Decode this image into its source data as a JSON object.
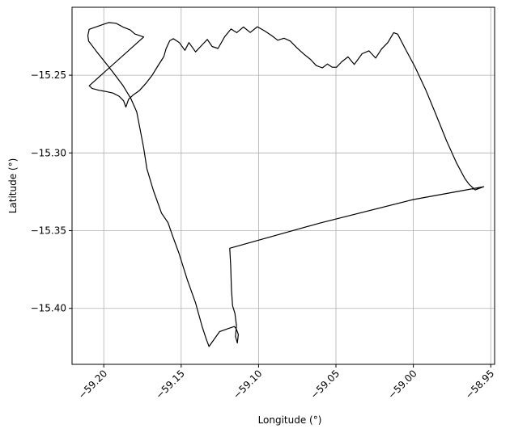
{
  "chart_data": {
    "type": "line",
    "title": "",
    "xlabel": "Longitude (°)",
    "ylabel": "Latitude (°)",
    "xlim": [
      -59.2205,
      -58.9475
    ],
    "ylim": [
      -15.436,
      -15.2063
    ],
    "xticks": [
      -59.2,
      -59.15,
      -59.1,
      -59.05,
      -59.0,
      -58.95
    ],
    "xtick_labels": [
      "−59.20",
      "−59.15",
      "−59.10",
      "−59.05",
      "−59.00",
      "−58.95"
    ],
    "yticks": [
      -15.25,
      -15.3,
      -15.35,
      -15.4
    ],
    "ytick_labels": [
      "−15.25",
      "−15.30",
      "−15.35",
      "−15.40"
    ],
    "grid": true,
    "series": [
      {
        "color": "#000000",
        "x": [
          -59.2094,
          -59.2076,
          -59.203,
          -59.1985,
          -59.1941,
          -59.1901,
          -59.1872,
          -59.1857,
          -59.184,
          -59.1811,
          -59.1771,
          -59.173,
          -59.1687,
          -59.165,
          -59.1612,
          -59.1598,
          -59.1574,
          -59.155,
          -59.1512,
          -59.1476,
          -59.145,
          -59.1407,
          -59.1362,
          -59.1331,
          -59.13,
          -59.1262,
          -59.1218,
          -59.1178,
          -59.1141,
          -59.1098,
          -59.1054,
          -59.1008,
          -59.0962,
          -59.0916,
          -59.0876,
          -59.0836,
          -59.0795,
          -59.0752,
          -59.0709,
          -59.0665,
          -59.0627,
          -59.0588,
          -59.0555,
          -59.0525,
          -59.0497,
          -59.0463,
          -59.0422,
          -59.0382,
          -59.0331,
          -59.0287,
          -59.0244,
          -59.0205,
          -59.0165,
          -59.0127,
          -59.0101,
          -59.0055,
          -58.999,
          -58.992,
          -58.9859,
          -58.9785,
          -58.972,
          -58.9667,
          -58.964,
          -58.96,
          -58.9545,
          -59.0,
          -59.06,
          -59.1186,
          -59.118,
          -59.1175,
          -59.1168,
          -59.1153,
          -59.1143,
          -59.1149,
          -59.1137,
          -59.1131,
          -59.1145,
          -59.1157,
          -59.1192,
          -59.1252,
          -59.132,
          -59.1339,
          -59.1365,
          -59.1408,
          -59.146,
          -59.1515,
          -59.1556,
          -59.1585,
          -59.1627,
          -59.168,
          -59.1721,
          -59.1742,
          -59.1765,
          -59.1787,
          -59.1825,
          -59.1877,
          -59.194,
          -59.2,
          -59.2051,
          -59.2098,
          -59.2103,
          -59.2094,
          -59.2054,
          -59.2014,
          -59.1968,
          -59.1921,
          -59.1876,
          -59.1829,
          -59.1799,
          -59.1766,
          -59.1742
        ],
        "y": [
          -15.2568,
          -15.2585,
          -15.2597,
          -15.2605,
          -15.2615,
          -15.2635,
          -15.2665,
          -15.2705,
          -15.2655,
          -15.2628,
          -15.26,
          -15.2555,
          -15.25,
          -15.244,
          -15.238,
          -15.233,
          -15.2278,
          -15.2265,
          -15.229,
          -15.234,
          -15.229,
          -15.235,
          -15.2302,
          -15.227,
          -15.2315,
          -15.2328,
          -15.2251,
          -15.2203,
          -15.2226,
          -15.219,
          -15.2225,
          -15.2188,
          -15.2214,
          -15.2245,
          -15.2275,
          -15.2262,
          -15.228,
          -15.2324,
          -15.2363,
          -15.2398,
          -15.2438,
          -15.2453,
          -15.2428,
          -15.2448,
          -15.2449,
          -15.2414,
          -15.2382,
          -15.2431,
          -15.2362,
          -15.2343,
          -15.239,
          -15.2331,
          -15.229,
          -15.2226,
          -15.2236,
          -15.2325,
          -15.2445,
          -15.2594,
          -15.2741,
          -15.2923,
          -15.3067,
          -15.3165,
          -15.3202,
          -15.3238,
          -15.3217,
          -15.33,
          -15.345,
          -15.3613,
          -15.373,
          -15.3878,
          -15.3983,
          -15.4032,
          -15.411,
          -15.418,
          -15.4223,
          -15.4167,
          -15.413,
          -15.4117,
          -15.4128,
          -15.415,
          -15.4245,
          -15.4195,
          -15.4115,
          -15.3962,
          -15.3818,
          -15.3643,
          -15.3532,
          -15.3448,
          -15.3387,
          -15.324,
          -15.3103,
          -15.2969,
          -15.2849,
          -15.2736,
          -15.2651,
          -15.2565,
          -15.2482,
          -15.2406,
          -15.2342,
          -15.2281,
          -15.2245,
          -15.2205,
          -15.2191,
          -15.2177,
          -15.2161,
          -15.2166,
          -15.219,
          -15.2209,
          -15.2235,
          -15.2246,
          -15.2254
        ]
      }
    ]
  }
}
